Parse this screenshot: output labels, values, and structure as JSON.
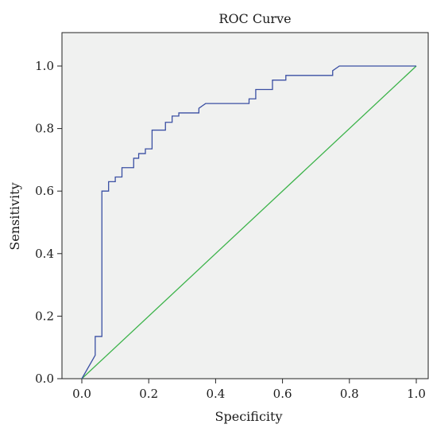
{
  "chart_data": {
    "type": "line",
    "title": "ROC Curve",
    "xlabel": "Specificity",
    "ylabel": "Sensitivity",
    "xlim": [
      0.0,
      1.1
    ],
    "ylim": [
      0.0,
      1.1
    ],
    "x_ticks": [
      0.0,
      0.2,
      0.4,
      0.6,
      0.8,
      1.0
    ],
    "y_ticks": [
      0.0,
      0.2,
      0.4,
      0.6,
      0.8,
      1.0
    ],
    "x_tick_labels": [
      "0.0",
      "0.2",
      "0.4",
      "0.6",
      "0.8",
      "1.0"
    ],
    "y_tick_labels": [
      "0.0",
      "0.2",
      "0.4",
      "0.6",
      "0.8",
      "1.0"
    ],
    "grid": false,
    "background": "#f0f1f0",
    "series": [
      {
        "color": "#3a4fa3",
        "points": [
          [
            0.0,
            0.0
          ],
          [
            0.04,
            0.075
          ],
          [
            0.04,
            0.135
          ],
          [
            0.06,
            0.135
          ],
          [
            0.06,
            0.6
          ],
          [
            0.08,
            0.6
          ],
          [
            0.08,
            0.63
          ],
          [
            0.1,
            0.63
          ],
          [
            0.1,
            0.645
          ],
          [
            0.12,
            0.645
          ],
          [
            0.12,
            0.675
          ],
          [
            0.155,
            0.675
          ],
          [
            0.155,
            0.705
          ],
          [
            0.17,
            0.705
          ],
          [
            0.17,
            0.72
          ],
          [
            0.19,
            0.72
          ],
          [
            0.19,
            0.735
          ],
          [
            0.21,
            0.735
          ],
          [
            0.21,
            0.795
          ],
          [
            0.25,
            0.795
          ],
          [
            0.25,
            0.82
          ],
          [
            0.27,
            0.82
          ],
          [
            0.27,
            0.84
          ],
          [
            0.29,
            0.84
          ],
          [
            0.29,
            0.85
          ],
          [
            0.35,
            0.85
          ],
          [
            0.35,
            0.865
          ],
          [
            0.37,
            0.88
          ],
          [
            0.5,
            0.88
          ],
          [
            0.5,
            0.895
          ],
          [
            0.52,
            0.895
          ],
          [
            0.52,
            0.925
          ],
          [
            0.57,
            0.925
          ],
          [
            0.57,
            0.955
          ],
          [
            0.61,
            0.955
          ],
          [
            0.61,
            0.97
          ],
          [
            0.75,
            0.97
          ],
          [
            0.75,
            0.985
          ],
          [
            0.77,
            1.0
          ],
          [
            1.0,
            1.0
          ]
        ]
      },
      {
        "color": "#3cb34a",
        "points": [
          [
            0.0,
            0.0
          ],
          [
            1.0,
            1.0
          ]
        ]
      }
    ]
  }
}
